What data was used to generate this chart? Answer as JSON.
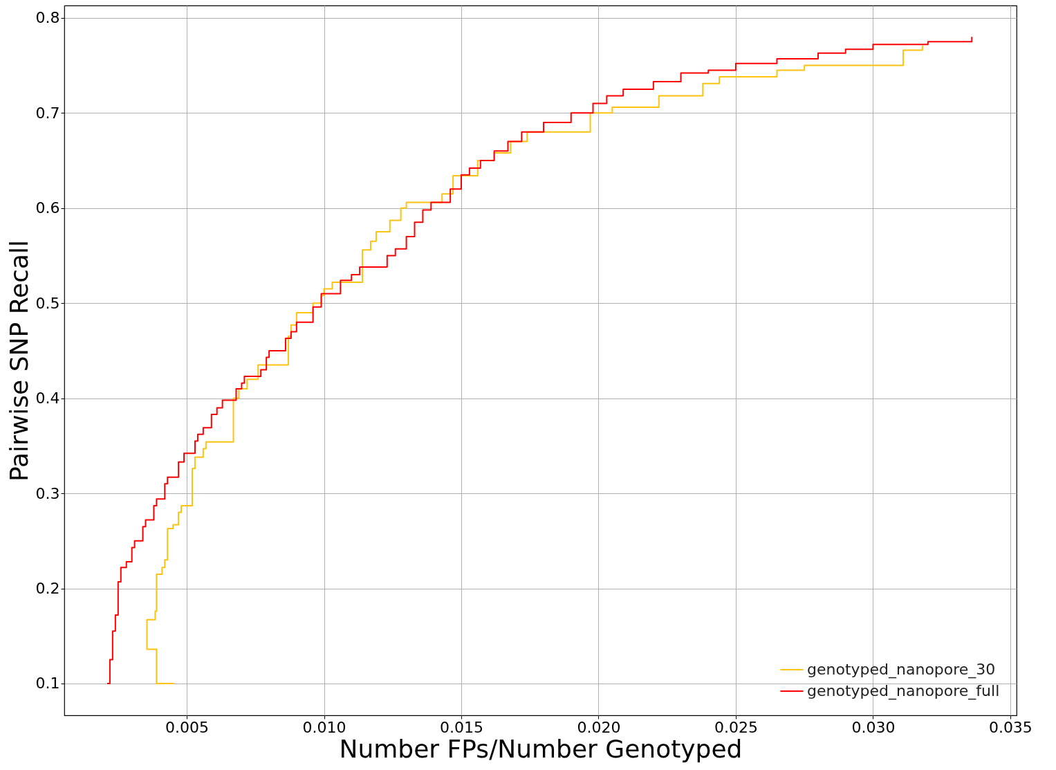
{
  "chart_data": {
    "type": "step",
    "xlabel": "Number FPs/Number Genotyped",
    "ylabel": "Pairwise SNP Recall",
    "xlim": [
      0.00054,
      0.03523
    ],
    "ylim": [
      0.0665,
      0.813
    ],
    "xticks": [
      {
        "value": 0.005,
        "label": "0.005"
      },
      {
        "value": 0.01,
        "label": "0.010"
      },
      {
        "value": 0.015,
        "label": "0.015"
      },
      {
        "value": 0.02,
        "label": "0.020"
      },
      {
        "value": 0.025,
        "label": "0.025"
      },
      {
        "value": 0.03,
        "label": "0.030"
      },
      {
        "value": 0.035,
        "label": "0.035"
      }
    ],
    "yticks": [
      0.1,
      0.2,
      0.3,
      0.4,
      0.5,
      0.6,
      0.7,
      0.8
    ],
    "grid": true,
    "legend": "bottom right",
    "line_style": "solid",
    "series": [
      {
        "name": "genotyped_nanopore_30",
        "color": "#ffc20e",
        "x": [
          0.00455,
          0.0039,
          0.0039,
          0.00355,
          0.00385,
          0.0039,
          0.0041,
          0.0042,
          0.0043,
          0.0045,
          0.0047,
          0.0048,
          0.0052,
          0.0053,
          0.0056,
          0.0057,
          0.0067,
          0.0069,
          0.0072,
          0.0076,
          0.0087,
          0.0088,
          0.009,
          0.0096,
          0.0099,
          0.01,
          0.0103,
          0.0114,
          0.0117,
          0.0119,
          0.0124,
          0.0128,
          0.013,
          0.0143,
          0.0147,
          0.0156,
          0.0162,
          0.0168,
          0.0174,
          0.0197,
          0.0205,
          0.0222,
          0.0238,
          0.0244,
          0.0265,
          0.0275,
          0.0311,
          0.0318
        ],
        "values": [
          0.1,
          0.106,
          0.136,
          0.167,
          0.176,
          0.215,
          0.222,
          0.23,
          0.263,
          0.267,
          0.28,
          0.287,
          0.326,
          0.338,
          0.347,
          0.354,
          0.4,
          0.41,
          0.42,
          0.435,
          0.465,
          0.477,
          0.49,
          0.5,
          0.508,
          0.515,
          0.522,
          0.556,
          0.565,
          0.575,
          0.587,
          0.6,
          0.606,
          0.615,
          0.634,
          0.65,
          0.658,
          0.67,
          0.68,
          0.7,
          0.706,
          0.718,
          0.731,
          0.738,
          0.745,
          0.75,
          0.766,
          0.771
        ]
      },
      {
        "name": "genotyped_nanopore_full",
        "color": "#ff0000",
        "x": [
          0.0021,
          0.0022,
          0.0023,
          0.0024,
          0.0025,
          0.0026,
          0.0028,
          0.003,
          0.0031,
          0.0034,
          0.0035,
          0.0038,
          0.0039,
          0.0042,
          0.0043,
          0.0047,
          0.0049,
          0.0053,
          0.0054,
          0.0056,
          0.0059,
          0.0061,
          0.0063,
          0.0068,
          0.007,
          0.0071,
          0.0077,
          0.0079,
          0.008,
          0.0086,
          0.0088,
          0.009,
          0.0096,
          0.0099,
          0.0106,
          0.011,
          0.0113,
          0.0123,
          0.0126,
          0.013,
          0.0133,
          0.0136,
          0.0139,
          0.0146,
          0.015,
          0.0153,
          0.0157,
          0.0162,
          0.0167,
          0.0172,
          0.018,
          0.019,
          0.0198,
          0.0203,
          0.0209,
          0.022,
          0.023,
          0.024,
          0.025,
          0.0265,
          0.028,
          0.029,
          0.03,
          0.032,
          0.0336
        ],
        "values": [
          0.1,
          0.125,
          0.155,
          0.172,
          0.207,
          0.222,
          0.228,
          0.243,
          0.25,
          0.265,
          0.272,
          0.287,
          0.294,
          0.31,
          0.317,
          0.333,
          0.342,
          0.355,
          0.362,
          0.369,
          0.383,
          0.39,
          0.398,
          0.41,
          0.416,
          0.423,
          0.43,
          0.443,
          0.45,
          0.463,
          0.47,
          0.48,
          0.496,
          0.51,
          0.524,
          0.53,
          0.538,
          0.55,
          0.557,
          0.57,
          0.585,
          0.598,
          0.606,
          0.62,
          0.635,
          0.642,
          0.65,
          0.66,
          0.67,
          0.68,
          0.69,
          0.7,
          0.71,
          0.718,
          0.725,
          0.733,
          0.742,
          0.745,
          0.752,
          0.757,
          0.763,
          0.767,
          0.772,
          0.775,
          0.78
        ]
      }
    ]
  }
}
